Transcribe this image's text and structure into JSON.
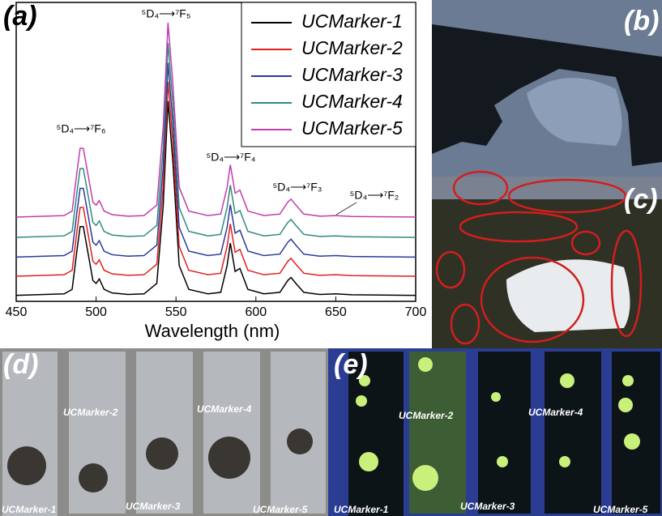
{
  "chart_data": {
    "type": "line",
    "panel_label": "(a)",
    "x_label": "Wavelength (nm)",
    "x": [
      450,
      480,
      485,
      488,
      490,
      492,
      495,
      498,
      500,
      502,
      505,
      510,
      520,
      530,
      538,
      542,
      545,
      548,
      552,
      558,
      570,
      578,
      582,
      584,
      587,
      590,
      595,
      605,
      615,
      620,
      622,
      625,
      630,
      640,
      650,
      660,
      680,
      700
    ],
    "series": [
      {
        "name": "UCMarker-1",
        "color": "#000000",
        "values": [
          2,
          2.5,
          4,
          17,
          25,
          25,
          16,
          7,
          6,
          7.5,
          4,
          2.8,
          2.3,
          2.5,
          6,
          32,
          67,
          47,
          12,
          4,
          2.5,
          3,
          12,
          19.5,
          10,
          11,
          4,
          2.5,
          3,
          7,
          8,
          6,
          3,
          2.3,
          2.5,
          2.2,
          2.1,
          2
        ]
      },
      {
        "name": "UCMarker-2",
        "color": "#e0201e",
        "values": [
          8.4,
          8.9,
          10.4,
          23.4,
          31.4,
          31.4,
          22.4,
          13.4,
          12.4,
          13.9,
          10.4,
          9.2,
          8.7,
          8.9,
          12.4,
          38.4,
          73.4,
          53.4,
          18.4,
          10.4,
          8.9,
          9.4,
          18.4,
          25.9,
          16.4,
          17.4,
          10.4,
          8.9,
          9.4,
          13.4,
          14.4,
          12.4,
          9.4,
          8.7,
          8.9,
          8.6,
          8.5,
          8.4
        ]
      },
      {
        "name": "UCMarker-3",
        "color": "#2a3a9a",
        "values": [
          14.8,
          15.3,
          16.8,
          29.8,
          37.8,
          37.8,
          28.8,
          19.8,
          18.8,
          20.3,
          16.8,
          15.6,
          15.1,
          15.3,
          18.8,
          44.8,
          79.8,
          59.8,
          24.8,
          16.8,
          15.3,
          15.8,
          24.8,
          32.3,
          22.8,
          23.8,
          16.8,
          15.3,
          15.8,
          19.8,
          20.8,
          18.8,
          15.8,
          15.1,
          15.3,
          15,
          14.9,
          14.8
        ]
      },
      {
        "name": "UCMarker-4",
        "color": "#2e8b7c",
        "values": [
          21.4,
          21.9,
          23.4,
          36.4,
          44.4,
          44.4,
          35.4,
          26.4,
          25.4,
          26.9,
          23.4,
          22.2,
          21.7,
          21.9,
          25.4,
          51.4,
          86.4,
          66.4,
          31.4,
          23.4,
          21.9,
          22.4,
          31.4,
          38.9,
          29.4,
          30.4,
          23.4,
          21.9,
          22.4,
          26.4,
          27.4,
          25.4,
          22.4,
          21.7,
          21.9,
          21.6,
          21.5,
          21.4
        ]
      },
      {
        "name": "UCMarker-5",
        "color": "#c03cb0",
        "values": [
          28.2,
          28.7,
          30.2,
          43.2,
          51.2,
          51.2,
          42.2,
          33.2,
          32.2,
          33.7,
          30.2,
          29,
          28.5,
          28.7,
          32.2,
          58.2,
          93.2,
          73.2,
          38.2,
          30.2,
          28.7,
          29.2,
          38.2,
          45.7,
          36.2,
          37.2,
          30.2,
          28.7,
          29.2,
          33.2,
          34.2,
          32.2,
          29.2,
          28.5,
          28.7,
          28.4,
          28.3,
          28.2
        ]
      }
    ],
    "xlim": [
      450,
      700
    ],
    "xticks": [
      450,
      500,
      550,
      600,
      650,
      700
    ],
    "ylim": [
      0,
      100
    ],
    "legend": "upper right",
    "annotations": [
      "⁵D₄⟶⁷F₆",
      "⁵D₄⟶⁷F₅",
      "⁵D₄⟶⁷F₄",
      "⁵D₄⟶⁷F₃",
      "⁵D₄⟶⁷F₂"
    ]
  },
  "panels": [
    {
      "label": "(b)"
    },
    {
      "label": "(c)"
    },
    {
      "label": "(d)",
      "markers": [
        "UCMarker-1",
        "UCMarker-2",
        "UCMarker-3",
        "UCMarker-4",
        "UCMarker-5"
      ]
    },
    {
      "label": "(e)",
      "markers": [
        "UCMarker-1",
        "UCMarker-2",
        "UCMarker-3",
        "UCMarker-4",
        "UCMarker-5"
      ]
    }
  ]
}
